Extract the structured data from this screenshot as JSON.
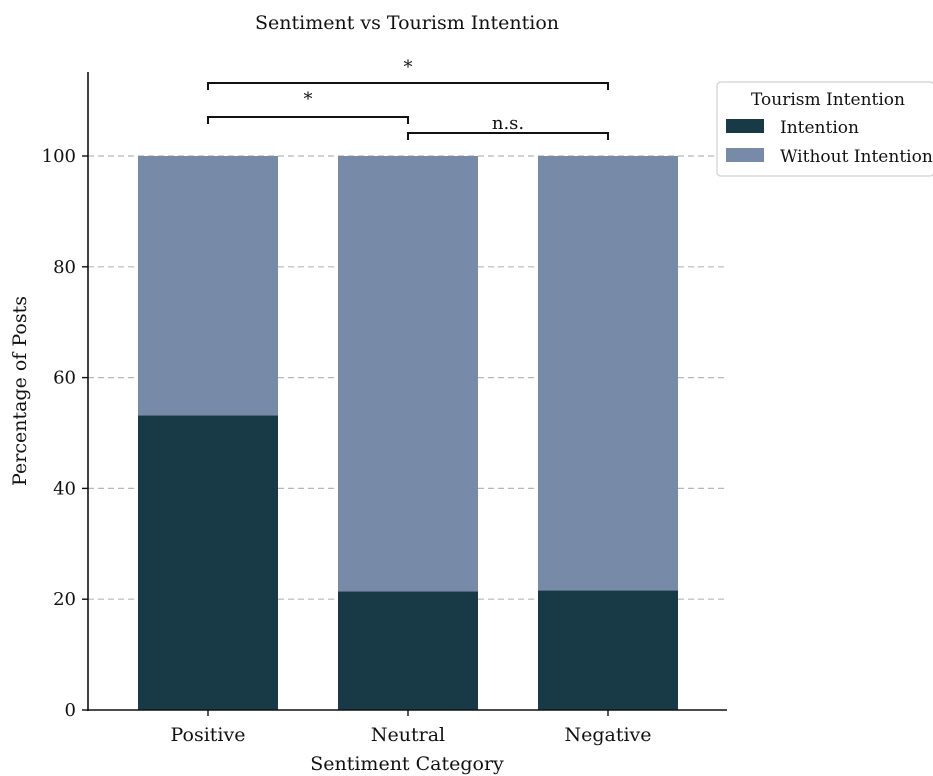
{
  "chart_data": {
    "type": "bar",
    "stacked": true,
    "title": "Sentiment vs Tourism Intention",
    "xlabel": "Sentiment Category",
    "ylabel": "Percentage of Posts",
    "categories": [
      "Positive",
      "Neutral",
      "Negative"
    ],
    "series": [
      {
        "name": "Intention",
        "values": [
          53.2,
          21.4,
          21.6
        ],
        "color": "#183a47"
      },
      {
        "name": "Without Intention",
        "values": [
          46.8,
          78.6,
          78.4
        ],
        "color": "#778ba9"
      }
    ],
    "ylim": [
      0,
      115
    ],
    "yticks": [
      0,
      20,
      40,
      60,
      80,
      100
    ],
    "grid": "y-dashed",
    "legend": {
      "title": "Tourism Intention",
      "position": "top-right-outside"
    },
    "significance": [
      {
        "from": "Positive",
        "to": "Negative",
        "label": "*"
      },
      {
        "from": "Positive",
        "to": "Neutral",
        "label": "*"
      },
      {
        "from": "Neutral",
        "to": "Negative",
        "label": "n.s."
      }
    ]
  }
}
